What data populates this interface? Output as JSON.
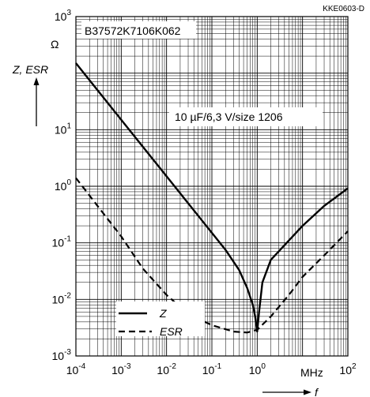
{
  "chart_data": {
    "type": "line",
    "title": "",
    "part_number": "B37572K7106K062",
    "drawing_code": "KKE0603-D",
    "annotation": "10 µF/6,3 V/size 1206",
    "ylabel": "Z, ESR",
    "yunit": "Ω",
    "xlabel": "f",
    "xunit": "MHz",
    "x_scale": "log",
    "y_scale": "log",
    "xlim": [
      0.0001,
      100
    ],
    "ylim": [
      0.001,
      1000
    ],
    "grid": true,
    "legend_position": "bottom-left",
    "x_ticks": [
      {
        "base": "10",
        "exp": "-4"
      },
      {
        "base": "10",
        "exp": "-3"
      },
      {
        "base": "10",
        "exp": "-2"
      },
      {
        "base": "10",
        "exp": "-1"
      },
      {
        "base": "10",
        "exp": "0"
      },
      {
        "base": "",
        "exp": ""
      },
      {
        "base": "10",
        "exp": "2"
      }
    ],
    "y_ticks": [
      {
        "base": "10",
        "exp": "3"
      },
      {
        "base": "",
        "exp": ""
      },
      {
        "base": "10",
        "exp": "1"
      },
      {
        "base": "10",
        "exp": "0"
      },
      {
        "base": "10",
        "exp": "-1"
      },
      {
        "base": "10",
        "exp": "-2"
      },
      {
        "base": "10",
        "exp": "-3"
      }
    ],
    "series": [
      {
        "name": "Z",
        "style": "solid",
        "x": [
          0.0001,
          0.001,
          0.01,
          0.1,
          0.2,
          0.4,
          0.6,
          0.8,
          0.9,
          1.0,
          1.1,
          1.3,
          2,
          5,
          10,
          30,
          100
        ],
        "y": [
          150,
          15,
          1.5,
          0.15,
          0.075,
          0.033,
          0.016,
          0.008,
          0.005,
          0.0027,
          0.006,
          0.02,
          0.05,
          0.11,
          0.2,
          0.45,
          0.92
        ]
      },
      {
        "name": "ESR",
        "style": "dashed",
        "x": [
          0.0001,
          0.0003,
          0.001,
          0.003,
          0.01,
          0.03,
          0.1,
          0.3,
          0.6,
          1.0,
          2,
          5,
          10,
          30,
          100
        ],
        "y": [
          1.4,
          0.45,
          0.13,
          0.035,
          0.012,
          0.0055,
          0.0035,
          0.0027,
          0.0026,
          0.0029,
          0.005,
          0.012,
          0.025,
          0.06,
          0.16
        ]
      }
    ]
  }
}
